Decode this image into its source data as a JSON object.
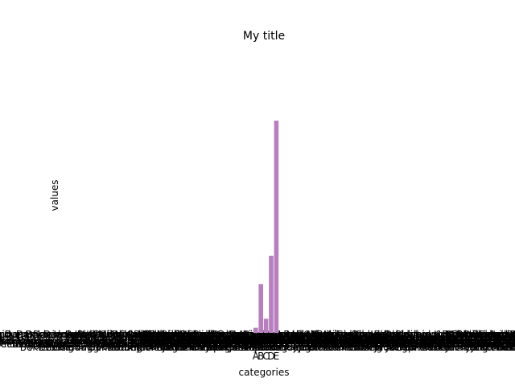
{
  "chart_data": {
    "type": "bar",
    "title": "My title",
    "xlabel": "categories",
    "ylabel": "values",
    "categories": [
      "A",
      "B",
      "C",
      "D",
      "E"
    ],
    "values": [
      8,
      76,
      22,
      120,
      330
    ],
    "ylim": [
      0,
      330
    ],
    "bar_color": "#b87fbf",
    "grid": false,
    "legend": "none",
    "overlapping_tick_labels": [
      "Bekleidung > Damen > Hosen > Caprihosen",
      "Bekleidung > Damen > Jacken & Mäntel > Jacken"
    ]
  }
}
